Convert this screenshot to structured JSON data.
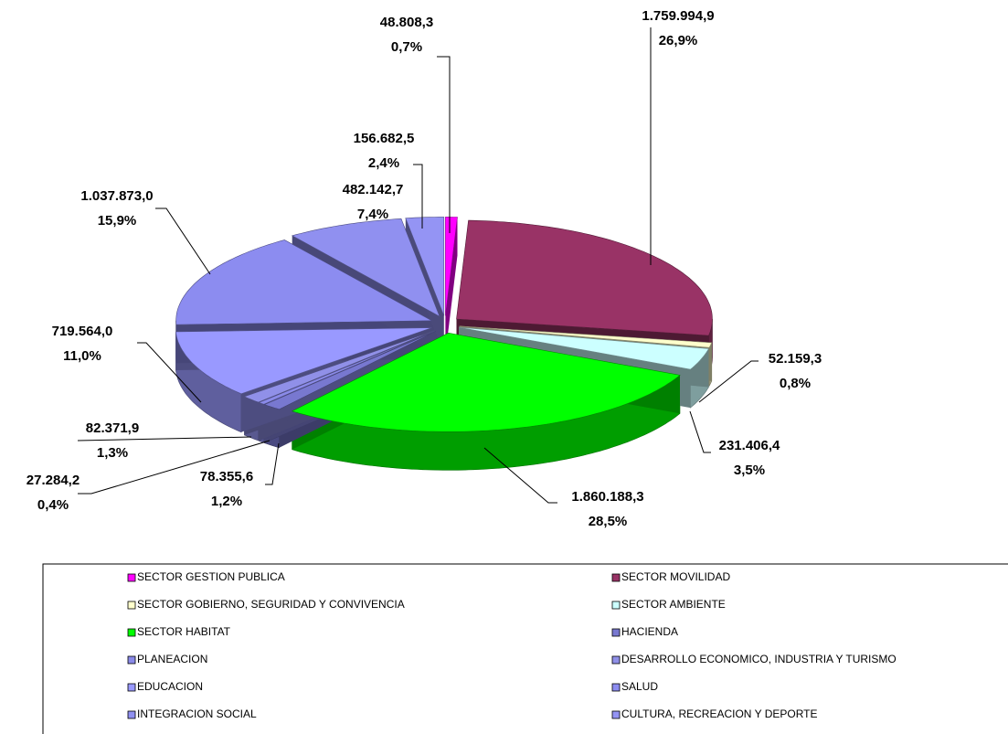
{
  "chart_data": {
    "type": "pie",
    "categories": [
      "SECTOR GESTION PUBLICA",
      "SECTOR MOVILIDAD",
      "SECTOR GOBIERNO, SEGURIDAD  Y CONVIVENCIA",
      "SECTOR AMBIENTE",
      "SECTOR HABITAT",
      "HACIENDA",
      "PLANEACION",
      "DESARROLLO ECONOMICO, INDUSTRIA  Y TURISMO",
      "EDUCACION",
      "SALUD",
      "INTEGRACION SOCIAL",
      "CULTURA, RECREACION Y DEPORTE"
    ],
    "values": [
      48808.3,
      1759994.9,
      52159.3,
      231406.4,
      1860188.3,
      78355.6,
      27284.2,
      82371.9,
      719564.0,
      1037873.0,
      482142.7,
      156682.5
    ],
    "value_labels": [
      "48.808,3",
      "1.759.994,9",
      "52.159,3",
      "231.406,4",
      "1.860.188,3",
      "78.355,6",
      "27.284,2",
      "82.371,9",
      "719.564,0",
      "1.037.873,0",
      "482.142,7",
      "156.682,5"
    ],
    "percents": [
      0.7,
      26.9,
      0.8,
      3.5,
      28.5,
      1.2,
      0.4,
      1.3,
      11.0,
      15.9,
      7.4,
      2.4
    ],
    "percent_labels": [
      "0,7%",
      "26,9%",
      "0,8%",
      "3,5%",
      "28,5%",
      "1,2%",
      "0,4%",
      "1,3%",
      "11,0%",
      "15,9%",
      "7,4%",
      "2,4%"
    ],
    "colors": [
      "#ff00ff",
      "#993366",
      "#ffffcc",
      "#ccffff",
      "#00ff00",
      "#7878d0",
      "#8a8ae8",
      "#9090e8",
      "#9999ff",
      "#8c8cf0",
      "#9090f0",
      "#9494f4"
    ]
  }
}
